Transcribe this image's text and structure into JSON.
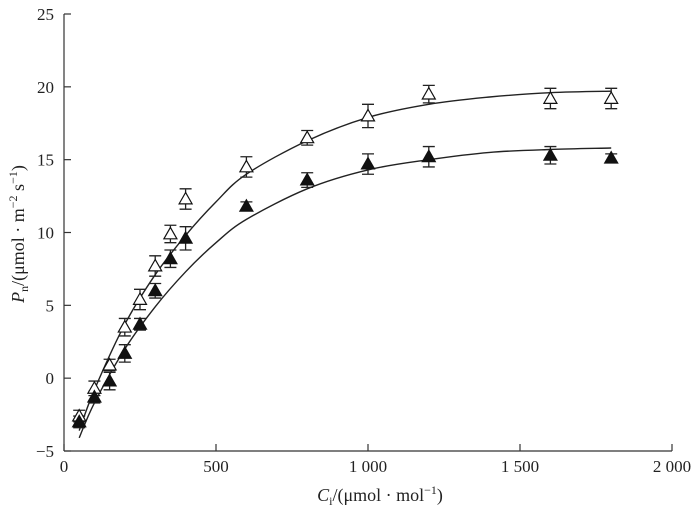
{
  "chart_data": {
    "type": "scatter",
    "title": "",
    "xlabel": {
      "var": "C",
      "sub": "i",
      "unit": "/(μmol · mol",
      "sup": "−1",
      "close": ")"
    },
    "ylabel": {
      "var": "P",
      "sub": "n",
      "unit": "/(μmol · m",
      "sup1": "−2",
      "mid": " s",
      "sup2": "−1",
      "close": ")"
    },
    "xlim": [
      0,
      2000
    ],
    "ylim": [
      -5,
      25
    ],
    "xticks": [
      0,
      500,
      1000,
      1500,
      2000
    ],
    "xtick_labels": [
      "0",
      "500",
      "1 000",
      "1 500",
      "2 000"
    ],
    "yticks": [
      -5,
      0,
      5,
      10,
      15,
      20,
      25
    ],
    "ytick_labels": [
      "−5",
      "0",
      "5",
      "10",
      "15",
      "20",
      "25"
    ],
    "grid": false,
    "series": [
      {
        "marker": "open-triangle",
        "points": [
          {
            "x": 50,
            "y": -2.6,
            "err": 0.4
          },
          {
            "x": 100,
            "y": -0.7,
            "err": 0.5
          },
          {
            "x": 150,
            "y": 0.9,
            "err": 0.4
          },
          {
            "x": 200,
            "y": 3.5,
            "err": 0.6
          },
          {
            "x": 250,
            "y": 5.4,
            "err": 0.7
          },
          {
            "x": 300,
            "y": 7.7,
            "err": 0.7
          },
          {
            "x": 350,
            "y": 9.9,
            "err": 0.6
          },
          {
            "x": 400,
            "y": 12.3,
            "err": 0.7
          },
          {
            "x": 600,
            "y": 14.5,
            "err": 0.7
          },
          {
            "x": 800,
            "y": 16.5,
            "err": 0.5
          },
          {
            "x": 1000,
            "y": 18.0,
            "err": 0.8
          },
          {
            "x": 1200,
            "y": 19.5,
            "err": 0.6
          },
          {
            "x": 1600,
            "y": 19.2,
            "err": 0.7
          },
          {
            "x": 1800,
            "y": 19.2,
            "err": 0.7
          }
        ],
        "fit": [
          {
            "x": 50,
            "y": -3.6
          },
          {
            "x": 100,
            "y": -0.8
          },
          {
            "x": 200,
            "y": 3.7
          },
          {
            "x": 300,
            "y": 7.1
          },
          {
            "x": 400,
            "y": 9.8
          },
          {
            "x": 500,
            "y": 12.1
          },
          {
            "x": 600,
            "y": 14.0
          },
          {
            "x": 800,
            "y": 16.3
          },
          {
            "x": 1000,
            "y": 17.9
          },
          {
            "x": 1200,
            "y": 18.8
          },
          {
            "x": 1400,
            "y": 19.3
          },
          {
            "x": 1600,
            "y": 19.6
          },
          {
            "x": 1800,
            "y": 19.7
          }
        ]
      },
      {
        "marker": "filled-triangle",
        "points": [
          {
            "x": 50,
            "y": -3.0,
            "err": 0.4
          },
          {
            "x": 100,
            "y": -1.3,
            "err": 0.4
          },
          {
            "x": 150,
            "y": -0.2,
            "err": 0.6
          },
          {
            "x": 200,
            "y": 1.7,
            "err": 0.6
          },
          {
            "x": 250,
            "y": 3.7,
            "err": 0.4
          },
          {
            "x": 300,
            "y": 6.0,
            "err": 0.5
          },
          {
            "x": 350,
            "y": 8.2,
            "err": 0.6
          },
          {
            "x": 400,
            "y": 9.6,
            "err": 0.8
          },
          {
            "x": 600,
            "y": 11.8,
            "err": 0.3
          },
          {
            "x": 800,
            "y": 13.6,
            "err": 0.5
          },
          {
            "x": 1000,
            "y": 14.7,
            "err": 0.7
          },
          {
            "x": 1200,
            "y": 15.2,
            "err": 0.7
          },
          {
            "x": 1600,
            "y": 15.3,
            "err": 0.6
          },
          {
            "x": 1800,
            "y": 15.1,
            "err": 0.3
          }
        ],
        "fit": [
          {
            "x": 50,
            "y": -4.1
          },
          {
            "x": 100,
            "y": -1.7
          },
          {
            "x": 200,
            "y": 2.0
          },
          {
            "x": 300,
            "y": 4.9
          },
          {
            "x": 400,
            "y": 7.3
          },
          {
            "x": 500,
            "y": 9.3
          },
          {
            "x": 600,
            "y": 10.9
          },
          {
            "x": 800,
            "y": 13.0
          },
          {
            "x": 1000,
            "y": 14.3
          },
          {
            "x": 1200,
            "y": 15.0
          },
          {
            "x": 1400,
            "y": 15.5
          },
          {
            "x": 1600,
            "y": 15.7
          },
          {
            "x": 1800,
            "y": 15.8
          }
        ]
      }
    ]
  }
}
